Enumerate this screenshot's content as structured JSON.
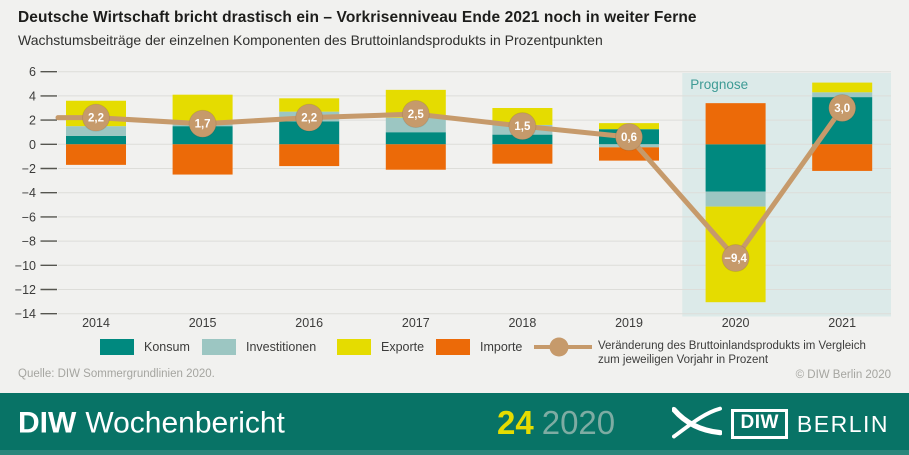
{
  "header": {
    "title": "Deutsche Wirtschaft bricht drastisch ein – Vorkrisenniveau Ende 2021 noch in weiter Ferne",
    "subtitle": "Wachstumsbeiträge der einzelnen Komponenten des Bruttoinlandsprodukts in Prozentpunkten"
  },
  "chart_data": {
    "type": "bar",
    "subtype": "stacked-bar-with-line",
    "categories": [
      "2014",
      "2015",
      "2016",
      "2017",
      "2018",
      "2019",
      "2020",
      "2021"
    ],
    "series": [
      {
        "name": "Konsum",
        "color": "#00897F",
        "values": [
          0.7,
          1.5,
          1.9,
          1.0,
          0.8,
          1.25,
          -3.9,
          3.9
        ]
      },
      {
        "name": "Investitionen",
        "color": "#9CC6C2",
        "values": [
          0.8,
          0.15,
          0.8,
          1.2,
          0.8,
          -0.25,
          -1.25,
          0.4
        ]
      },
      {
        "name": "Exporte",
        "color": "#E5DC00",
        "values": [
          2.1,
          2.45,
          1.1,
          2.3,
          1.4,
          0.5,
          -7.9,
          0.8
        ]
      },
      {
        "name": "Importe",
        "color": "#EC6A08",
        "values": [
          -1.7,
          -2.5,
          -1.8,
          -2.1,
          -1.6,
          -1.1,
          3.4,
          -2.2
        ]
      }
    ],
    "line_series": {
      "name": "Veränderung des Bruttoinlandsprodukts im Vergleich zum jeweiligen Vorjahr in Prozent",
      "color": "#C69A6B",
      "values": [
        2.2,
        1.7,
        2.2,
        2.5,
        1.5,
        0.6,
        -9.4,
        3.0
      ],
      "labels": [
        "2,2",
        "1,7",
        "2,2",
        "2,5",
        "1,5",
        "0,6",
        "−9,4",
        "3,0"
      ]
    },
    "ylim": [
      -14,
      6
    ],
    "ytick_step": 2,
    "ytick_labels": [
      "6",
      "4",
      "2",
      "0",
      "−2",
      "−4",
      "−6",
      "−8",
      "−10",
      "−12",
      "−14"
    ],
    "grid": true,
    "legend_position": "bottom",
    "prognose": {
      "label": "Prognose",
      "years": [
        "2020",
        "2021"
      ],
      "band_color": "#DCEAE9",
      "label_color": "#3E9B95"
    }
  },
  "legend": {
    "items": [
      {
        "label": "Konsum",
        "color": "#00897F"
      },
      {
        "label": "Investitionen",
        "color": "#9CC6C2"
      },
      {
        "label": "Exporte",
        "color": "#E5DC00"
      },
      {
        "label": "Importe",
        "color": "#EC6A08"
      }
    ],
    "line_item": {
      "color": "#C69A6B",
      "label_line1": "Veränderung des Bruttoinlandsprodukts im Vergleich",
      "label_line2": "zum jeweiligen Vorjahr in Prozent"
    }
  },
  "source": "Quelle: DIW Sommergrundlinien 2020.",
  "copyright": "© DIW Berlin 2020",
  "footer": {
    "journal_bold": "DIW",
    "journal_name": "Wochenbericht",
    "issue": "24",
    "year": "2020",
    "bar_color": "#087366",
    "issue_color": "#E5DC00",
    "year_color": "#7EACA3",
    "logo_diw": "DIW",
    "logo_berlin": "BERLIN"
  }
}
